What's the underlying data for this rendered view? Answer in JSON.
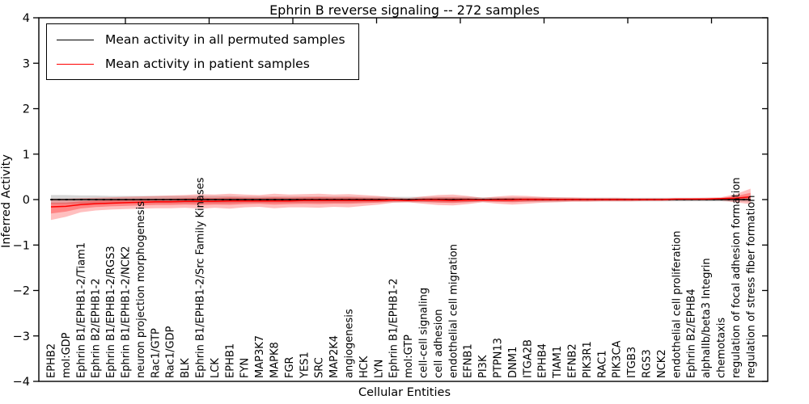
{
  "figure": {
    "title": "Ephrin B reverse signaling -- 272 samples",
    "xlabel": "Cellular Entities",
    "ylabel": "Inferred Activity"
  },
  "legend": {
    "items": [
      {
        "label": "Mean activity in all permuted samples",
        "color": "#000000"
      },
      {
        "label": "Mean activity in patient samples",
        "color": "#ff0000"
      }
    ]
  },
  "chart_data": {
    "type": "line",
    "title": "Ephrin B reverse signaling -- 272 samples",
    "xlabel": "Cellular Entities",
    "ylabel": "Inferred Activity",
    "ylim": [
      -4,
      4
    ],
    "grid": false,
    "legend_position": "upper left",
    "ytick_values": [
      4,
      3,
      2,
      1,
      0,
      -1,
      -2,
      -3,
      -4
    ],
    "ytick_labels": [
      "4",
      "3",
      "2",
      "1",
      "0",
      "−1",
      "−2",
      "−3",
      "−4"
    ],
    "categories": [
      "EPHB2",
      "mol:GDP",
      "Ephrin B1/EPHB1-2/Tiam1",
      "Ephrin B2/EPHB1-2",
      "Ephrin B1/EPHB1-2/RGS3",
      "Ephrin B1/EPHB1-2/NCK2",
      "neuron projection morphogenesis",
      "Rac1/GTP",
      "Rac1/GDP",
      "BLK",
      "Ephrin B1/EPHB1-2/Src Family Kinases",
      "LCK",
      "EPHB1",
      "FYN",
      "MAP3K7",
      "MAPK8",
      "FGR",
      "YES1",
      "SRC",
      "MAP2K4",
      "angiogenesis",
      "HCK",
      "LYN",
      "Ephrin B1/EPHB1-2",
      "mol:GTP",
      "cell-cell signaling",
      "cell adhesion",
      "endothelial cell migration",
      "EFNB1",
      "PI3K",
      "PTPN13",
      "DNM1",
      "ITGA2B",
      "EPHB4",
      "TIAM1",
      "EFNB2",
      "PIK3R1",
      "RAC1",
      "PIK3CA",
      "ITGB3",
      "RGS3",
      "NCK2",
      "endothelial cell proliferation",
      "Ephrin B2/EPHB4",
      "alphaIIb/beta3 Integrin",
      "chemotaxis",
      "regulation of focal adhesion formation",
      "regulation of stress fiber formation"
    ],
    "series": [
      {
        "name": "Mean activity in all permuted samples",
        "color": "#000000",
        "values": [
          0,
          0,
          0,
          0,
          0,
          0,
          0,
          0,
          0,
          0,
          0,
          0,
          0,
          0,
          0,
          0,
          0,
          0,
          0,
          0,
          0,
          0,
          0,
          0,
          0,
          0,
          0,
          0,
          0,
          0,
          0,
          0,
          0,
          0,
          0,
          0,
          0,
          0,
          0,
          0,
          0,
          0,
          0,
          0,
          0,
          0,
          0,
          0
        ],
        "band_halfwidth": [
          0.1,
          0.1,
          0.09,
          0.09,
          0.08,
          0.08,
          0.08,
          0.08,
          0.08,
          0.08,
          0.08,
          0.08,
          0.08,
          0.07,
          0.07,
          0.07,
          0.07,
          0.07,
          0.07,
          0.07,
          0.07,
          0.06,
          0.06,
          0.06,
          0.06,
          0.06,
          0.06,
          0.06,
          0.06,
          0.05,
          0.05,
          0.05,
          0.05,
          0.05,
          0.05,
          0.04,
          0.04,
          0.04,
          0.04,
          0.04,
          0.04,
          0.04,
          0.04,
          0.04,
          0.04,
          0.04,
          0.05,
          0.05
        ]
      },
      {
        "name": "Mean activity in patient samples",
        "color": "#ff0000",
        "values": [
          -0.16,
          -0.15,
          -0.11,
          -0.09,
          -0.08,
          -0.07,
          -0.06,
          -0.05,
          -0.05,
          -0.04,
          -0.04,
          -0.04,
          -0.03,
          -0.03,
          -0.03,
          -0.03,
          -0.03,
          -0.02,
          -0.02,
          -0.02,
          -0.02,
          -0.02,
          -0.02,
          -0.01,
          -0.02,
          -0.01,
          -0.01,
          -0.02,
          -0.01,
          -0.01,
          -0.01,
          -0.01,
          0,
          0,
          0,
          0,
          0,
          0,
          0,
          0,
          0,
          0,
          0.01,
          0.01,
          0.01,
          0.02,
          0.03,
          0.06
        ],
        "band_upper": [
          0.02,
          0.02,
          0.03,
          0.04,
          0.05,
          0.06,
          0.07,
          0.08,
          0.09,
          0.1,
          0.12,
          0.11,
          0.13,
          0.11,
          0.1,
          0.13,
          0.11,
          0.12,
          0.13,
          0.11,
          0.12,
          0.1,
          0.08,
          0.05,
          0.03,
          0.07,
          0.1,
          0.11,
          0.08,
          0.04,
          0.07,
          0.09,
          0.08,
          0.06,
          0.05,
          0.05,
          0.04,
          0.04,
          0.04,
          0.03,
          0.03,
          0.03,
          0.03,
          0.03,
          0.04,
          0.05,
          0.12,
          0.24
        ],
        "band_lower": [
          -0.45,
          -0.38,
          -0.28,
          -0.24,
          -0.22,
          -0.21,
          -0.2,
          -0.19,
          -0.19,
          -0.18,
          -0.2,
          -0.18,
          -0.2,
          -0.17,
          -0.16,
          -0.19,
          -0.17,
          -0.17,
          -0.18,
          -0.16,
          -0.17,
          -0.14,
          -0.11,
          -0.07,
          -0.06,
          -0.09,
          -0.12,
          -0.13,
          -0.1,
          -0.06,
          -0.09,
          -0.11,
          -0.09,
          -0.07,
          -0.06,
          -0.05,
          -0.05,
          -0.04,
          -0.04,
          -0.04,
          -0.03,
          -0.03,
          -0.02,
          -0.02,
          -0.02,
          -0.02,
          -0.06,
          -0.1
        ]
      }
    ]
  }
}
